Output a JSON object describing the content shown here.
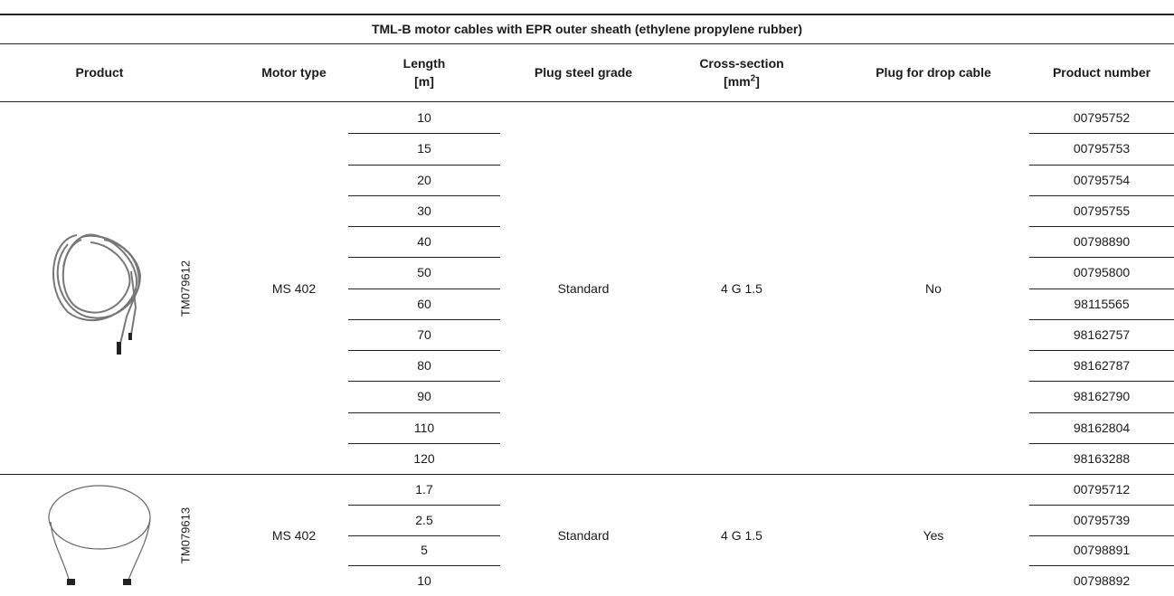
{
  "title": "TML-B motor cables with EPR outer sheath (ethylene propylene rubber)",
  "headers": [
    {
      "lines": [
        "Product"
      ]
    },
    {
      "lines": [
        "Motor type"
      ]
    },
    {
      "lines": [
        "Length",
        "[m]"
      ]
    },
    {
      "lines": [
        "Plug steel grade"
      ]
    },
    {
      "lines": [
        "Cross-section"
      ],
      "unit_prefix": "[mm",
      "unit_sup": "2",
      "unit_suffix": "]"
    },
    {
      "lines": [
        "Plug for drop cable"
      ]
    },
    {
      "lines": [
        "Product number"
      ]
    }
  ],
  "groups": [
    {
      "image_code": "TM079612",
      "motor_type": "MS 402",
      "plug_steel_grade": "Standard",
      "cross_section": "4 G 1.5",
      "plug_for_drop_cable": "No",
      "rows": [
        {
          "length": 10,
          "product_number": "00795752"
        },
        {
          "length": 15,
          "product_number": "00795753"
        },
        {
          "length": 20,
          "product_number": "00795754"
        },
        {
          "length": 30,
          "product_number": "00795755"
        },
        {
          "length": 40,
          "product_number": "00798890"
        },
        {
          "length": 50,
          "product_number": "00795800"
        },
        {
          "length": 60,
          "product_number": "98115565"
        },
        {
          "length": 70,
          "product_number": "98162757"
        },
        {
          "length": 80,
          "product_number": "98162787"
        },
        {
          "length": 90,
          "product_number": "98162790"
        },
        {
          "length": 110,
          "product_number": "98162804"
        },
        {
          "length": 120,
          "product_number": "98163288"
        }
      ]
    },
    {
      "image_code": "TM079613",
      "motor_type": "MS 402",
      "plug_steel_grade": "Standard",
      "cross_section": "4 G 1.5",
      "plug_for_drop_cable": "Yes",
      "rows": [
        {
          "length": 1.7,
          "product_number": "00795712"
        },
        {
          "length": 2.5,
          "product_number": "00795739"
        },
        {
          "length": 5,
          "product_number": "00798891"
        },
        {
          "length": 10,
          "product_number": "00798892"
        }
      ]
    }
  ]
}
